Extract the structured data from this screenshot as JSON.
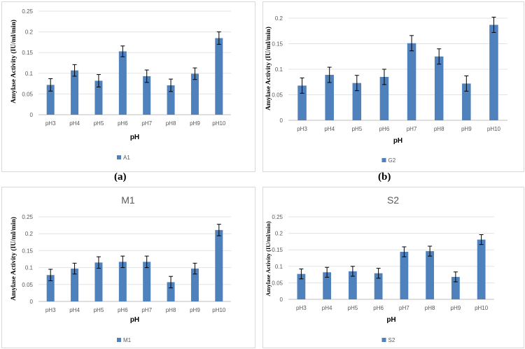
{
  "panel_captions": [
    "(a)",
    "(b)"
  ],
  "chart_data": [
    {
      "type": "bar",
      "title": "",
      "xlabel": "pH",
      "ylabel": "Amylase Activity (IU/ml/min)",
      "categories": [
        "pH3",
        "pH4",
        "pH5",
        "pH6",
        "pH7",
        "pH8",
        "pH9",
        "pH10"
      ],
      "series": [
        {
          "name": "A1",
          "values": [
            0.072,
            0.107,
            0.082,
            0.153,
            0.093,
            0.071,
            0.099,
            0.185
          ],
          "errors": [
            0.015,
            0.014,
            0.015,
            0.013,
            0.015,
            0.015,
            0.014,
            0.015
          ]
        }
      ],
      "yticks": [
        "0",
        "0.05",
        "0.1",
        "0.15",
        "0.2",
        "0.25"
      ],
      "ylim": [
        0,
        0.25
      ],
      "legend": "bottom",
      "color": "#4f81bd"
    },
    {
      "type": "bar",
      "title": "",
      "xlabel": "pH",
      "ylabel": "Amylase Activity (IU/ml/min)",
      "categories": [
        "pH3",
        "pH4",
        "pH5",
        "pH6",
        "pH7",
        "pH8",
        "pH9",
        "pH10"
      ],
      "series": [
        {
          "name": "G2",
          "values": [
            0.068,
            0.089,
            0.073,
            0.085,
            0.151,
            0.125,
            0.072,
            0.187
          ],
          "errors": [
            0.015,
            0.015,
            0.015,
            0.015,
            0.015,
            0.015,
            0.015,
            0.015
          ]
        }
      ],
      "yticks": [
        "0",
        "0.05",
        "0.1",
        "0.15",
        "0.2"
      ],
      "ylim": [
        0,
        0.2
      ],
      "legend": "bottom",
      "color": "#4f81bd"
    },
    {
      "type": "bar",
      "title": "M1",
      "xlabel": "pH",
      "ylabel": "Amylase Activity (IU/ml/min)",
      "categories": [
        "pH3",
        "pH4",
        "pH5",
        "pH6",
        "pH7",
        "pH8",
        "pH9",
        "pH10"
      ],
      "series": [
        {
          "name": "M1",
          "values": [
            0.078,
            0.097,
            0.115,
            0.117,
            0.117,
            0.057,
            0.097,
            0.211
          ],
          "errors": [
            0.017,
            0.016,
            0.017,
            0.017,
            0.017,
            0.017,
            0.016,
            0.017
          ]
        }
      ],
      "yticks": [
        "0",
        "0.05",
        "0.1",
        "0.15",
        "0.2",
        "0.25"
      ],
      "ylim": [
        0,
        0.25
      ],
      "legend": "bottom",
      "color": "#4f81bd"
    },
    {
      "type": "bar",
      "title": "S2",
      "xlabel": "pH",
      "ylabel": "Amylase Activity (IU/ml/min)",
      "categories": [
        "pH3",
        "pH4",
        "pH5",
        "pH6",
        "pH7",
        "pH8",
        "pH9",
        "pH10"
      ],
      "series": [
        {
          "name": "S2",
          "values": [
            0.077,
            0.082,
            0.085,
            0.079,
            0.144,
            0.146,
            0.068,
            0.181
          ],
          "errors": [
            0.015,
            0.015,
            0.015,
            0.015,
            0.015,
            0.015,
            0.015,
            0.015
          ]
        }
      ],
      "yticks": [
        "0",
        "0.05",
        "0.1",
        "0.15",
        "0.2",
        "0.25"
      ],
      "ylim": [
        0,
        0.25
      ],
      "legend": "bottom",
      "color": "#4f81bd"
    }
  ]
}
